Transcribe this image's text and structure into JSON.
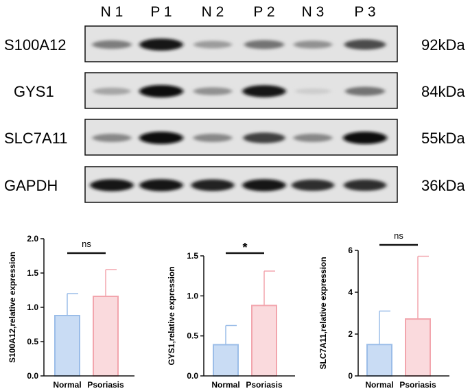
{
  "blot": {
    "lane_labels": [
      "N 1",
      "P 1",
      "N 2",
      "P 2",
      "N 3",
      "P 3"
    ],
    "rows": [
      {
        "protein": "S100A12",
        "size": "92kDa",
        "intensities": [
          0.45,
          0.95,
          0.3,
          0.5,
          0.35,
          0.7
        ]
      },
      {
        "protein": "GYS1",
        "size": "84kDa",
        "intensities": [
          0.25,
          1.0,
          0.35,
          0.95,
          0.05,
          0.5
        ]
      },
      {
        "protein": "SLC7A11",
        "size": "55kDa",
        "intensities": [
          0.4,
          1.0,
          0.4,
          0.75,
          0.4,
          1.0
        ]
      },
      {
        "protein": "GAPDH",
        "size": "36kDa",
        "intensities": [
          0.95,
          0.95,
          0.9,
          0.95,
          0.85,
          0.85
        ]
      }
    ]
  },
  "colors": {
    "normal_fill": "#c9dcf4",
    "normal_edge": "#9bbde8",
    "psoriasis_fill": "#fadadd",
    "psoriasis_edge": "#f2a5ad"
  },
  "chart_data": [
    {
      "type": "bar",
      "categories": [
        "Normal",
        "Psoriasis"
      ],
      "values": [
        0.88,
        1.16
      ],
      "errors": [
        0.32,
        0.39
      ],
      "ylabel": "S100A12,relative expression",
      "ylim": [
        0,
        2.0
      ],
      "yticks": [
        "0.0",
        "0.5",
        "1.0",
        "1.5",
        "2.0"
      ],
      "significance": "ns"
    },
    {
      "type": "bar",
      "categories": [
        "Normal",
        "Psoriasis"
      ],
      "values": [
        0.39,
        0.88
      ],
      "errors": [
        0.24,
        0.43
      ],
      "ylabel": "GYS1,relative expression",
      "ylim": [
        0,
        1.5
      ],
      "yticks": [
        "0.0",
        "0.5",
        "1.0",
        "1.5"
      ],
      "significance": "*"
    },
    {
      "type": "bar",
      "categories": [
        "Normal",
        "Psoriasis"
      ],
      "values": [
        1.5,
        2.72
      ],
      "errors": [
        1.6,
        3.0
      ],
      "ylabel": "SLC7A11,relative expression",
      "ylim": [
        0,
        6
      ],
      "yticks": [
        "0",
        "2",
        "4",
        "6"
      ],
      "significance": "ns"
    }
  ]
}
